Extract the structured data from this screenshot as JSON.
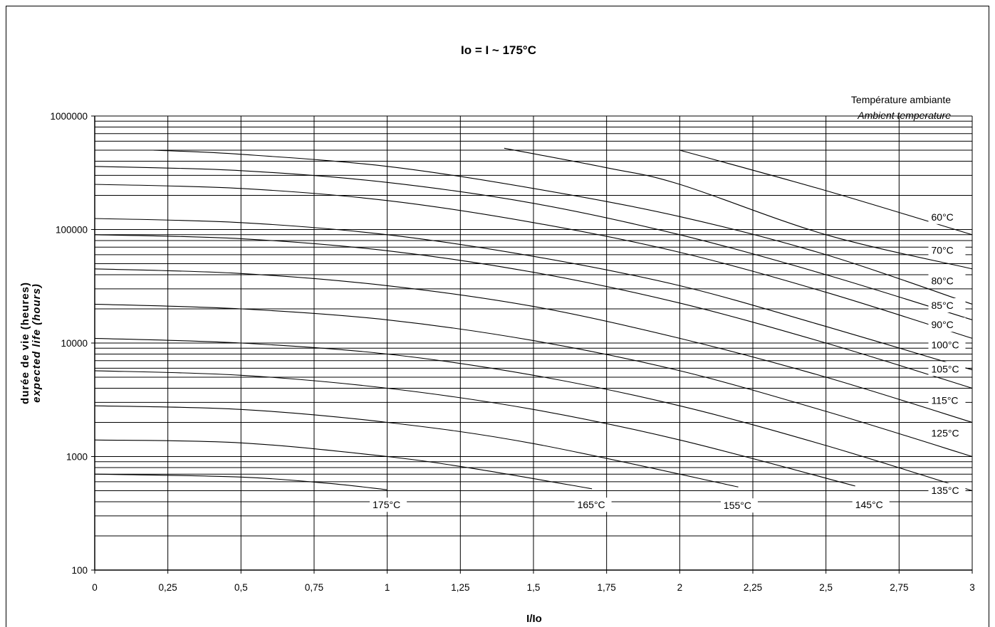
{
  "chart_data": {
    "type": "line",
    "title": "Io = I ~ 175°C",
    "legend_title_fr": "Température ambiante",
    "legend_title_en": "Ambient temperature",
    "xlabel": "I/Io",
    "ylabel_fr": "durée de vie (heures)",
    "ylabel_en": "expected life (hours)",
    "xlim": [
      0,
      3
    ],
    "ylim": [
      100,
      1000000
    ],
    "yscale": "log",
    "grid": true,
    "x_ticks": [
      {
        "v": 0,
        "label": "0"
      },
      {
        "v": 0.25,
        "label": "0,25"
      },
      {
        "v": 0.5,
        "label": "0,5"
      },
      {
        "v": 0.75,
        "label": "0,75"
      },
      {
        "v": 1,
        "label": "1"
      },
      {
        "v": 1.25,
        "label": "1,25"
      },
      {
        "v": 1.5,
        "label": "1,5"
      },
      {
        "v": 1.75,
        "label": "1,75"
      },
      {
        "v": 2,
        "label": "2"
      },
      {
        "v": 2.25,
        "label": "2,25"
      },
      {
        "v": 2.5,
        "label": "2,5"
      },
      {
        "v": 2.75,
        "label": "2,75"
      },
      {
        "v": 3,
        "label": "3"
      }
    ],
    "y_ticks": [
      {
        "v": 100,
        "label": "100"
      },
      {
        "v": 1000,
        "label": "1000"
      },
      {
        "v": 10000,
        "label": "10000"
      },
      {
        "v": 100000,
        "label": "100000"
      },
      {
        "v": 1000000,
        "label": "1000000"
      }
    ],
    "series": [
      {
        "name": "60°C",
        "label_at": [
          2.86,
          120000
        ],
        "points": [
          [
            2,
            500000
          ],
          [
            2.5,
            220000
          ],
          [
            3,
            90000
          ]
        ]
      },
      {
        "name": "70°C",
        "label_at": [
          2.86,
          61000
        ],
        "points": [
          [
            1.4,
            520000
          ],
          [
            1.75,
            350000
          ],
          [
            2,
            250000
          ],
          [
            2.5,
            90000
          ],
          [
            3,
            45000
          ]
        ]
      },
      {
        "name": "80°C",
        "label_at": [
          2.86,
          33000
        ],
        "points": [
          [
            0.2,
            500000
          ],
          [
            0.5,
            460000
          ],
          [
            1,
            360000
          ],
          [
            1.5,
            230000
          ],
          [
            2,
            130000
          ],
          [
            2.5,
            60000
          ],
          [
            3,
            22000
          ]
        ]
      },
      {
        "name": "85°C",
        "label_at": [
          2.86,
          20000
        ],
        "points": [
          [
            0,
            360000
          ],
          [
            0.5,
            330000
          ],
          [
            1,
            260000
          ],
          [
            1.5,
            170000
          ],
          [
            2,
            90000
          ],
          [
            2.5,
            40000
          ],
          [
            3,
            16000
          ]
        ]
      },
      {
        "name": "90°C",
        "label_at": [
          2.86,
          13500
        ],
        "points": [
          [
            0,
            250000
          ],
          [
            0.5,
            230000
          ],
          [
            1,
            180000
          ],
          [
            1.5,
            115000
          ],
          [
            2,
            63000
          ],
          [
            2.5,
            28000
          ],
          [
            3,
            11000
          ]
        ]
      },
      {
        "name": "100°C",
        "label_at": [
          2.86,
          9000
        ],
        "points": [
          [
            0,
            125000
          ],
          [
            0.5,
            115000
          ],
          [
            1,
            90000
          ],
          [
            1.5,
            58000
          ],
          [
            2,
            32000
          ],
          [
            2.5,
            14000
          ],
          [
            3,
            5800
          ]
        ]
      },
      {
        "name": "105°C",
        "label_at": [
          2.86,
          5500
        ],
        "points": [
          [
            0,
            90000
          ],
          [
            0.5,
            83000
          ],
          [
            1,
            65000
          ],
          [
            1.5,
            42000
          ],
          [
            2,
            22500
          ],
          [
            2.5,
            10000
          ],
          [
            3,
            4000
          ]
        ]
      },
      {
        "name": "115°C",
        "label_at": [
          2.86,
          2900
        ],
        "points": [
          [
            0,
            45000
          ],
          [
            0.5,
            41000
          ],
          [
            1,
            32000
          ],
          [
            1.5,
            21000
          ],
          [
            2,
            11000
          ],
          [
            2.5,
            5000
          ],
          [
            3,
            2000
          ]
        ]
      },
      {
        "name": "125°C",
        "label_at": [
          2.86,
          1500
        ],
        "points": [
          [
            0,
            22000
          ],
          [
            0.5,
            20000
          ],
          [
            1,
            16000
          ],
          [
            1.5,
            10500
          ],
          [
            2,
            5700
          ],
          [
            2.5,
            2500
          ],
          [
            3,
            1000
          ]
        ]
      },
      {
        "name": "135°C",
        "label_at": [
          2.86,
          470
        ],
        "points": [
          [
            0,
            11000
          ],
          [
            0.5,
            10000
          ],
          [
            1,
            8000
          ],
          [
            1.5,
            5200
          ],
          [
            2,
            2800
          ],
          [
            2.5,
            1250
          ],
          [
            3,
            500
          ]
        ]
      },
      {
        "name": "145°C",
        "label_at": [
          2.6,
          350
        ],
        "points": [
          [
            0,
            5700
          ],
          [
            0.5,
            5200
          ],
          [
            1,
            4000
          ],
          [
            1.5,
            2600
          ],
          [
            2,
            1400
          ],
          [
            2.6,
            550
          ]
        ]
      },
      {
        "name": "155°C",
        "label_at": [
          2.15,
          345
        ],
        "points": [
          [
            0,
            2800
          ],
          [
            0.5,
            2600
          ],
          [
            1,
            2000
          ],
          [
            1.5,
            1300
          ],
          [
            2.2,
            540
          ]
        ]
      },
      {
        "name": "165°C",
        "label_at": [
          1.65,
          350
        ],
        "points": [
          [
            0,
            1400
          ],
          [
            0.5,
            1320
          ],
          [
            1,
            1000
          ],
          [
            1.3,
            780
          ],
          [
            1.7,
            520
          ]
        ]
      },
      {
        "name": "175°C",
        "label_at": [
          0.95,
          350
        ],
        "points": [
          [
            0,
            700
          ],
          [
            0.5,
            660
          ],
          [
            0.8,
            580
          ],
          [
            1,
            510
          ]
        ]
      }
    ]
  }
}
